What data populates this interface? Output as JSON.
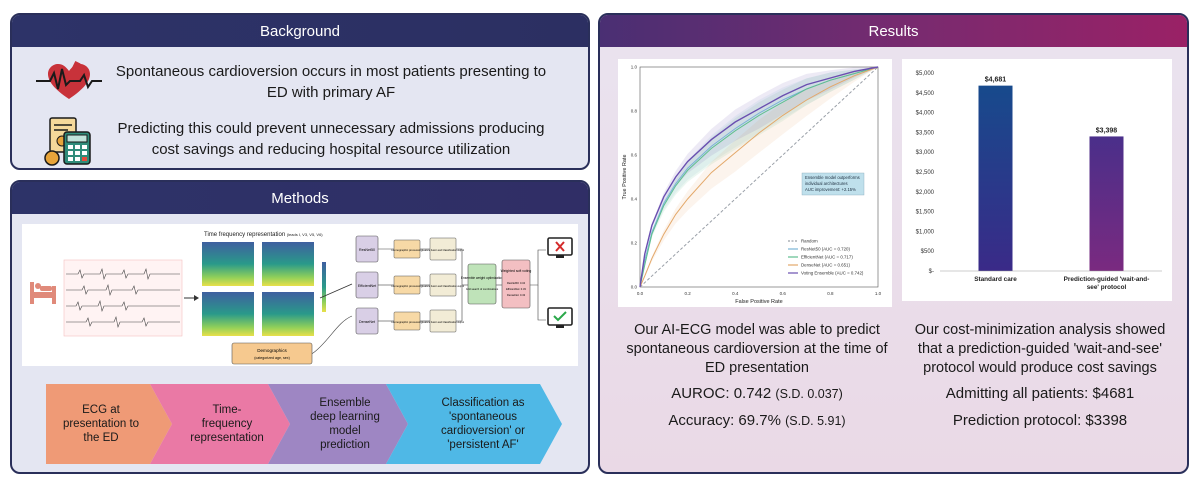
{
  "background": {
    "title": "Background",
    "point1": "Spontaneous cardioversion occurs in most patients presenting to ED with primary AF",
    "point2": "Predicting this could prevent unnecessary admissions producing cost savings and reducing hospital resource utilization"
  },
  "methods": {
    "title": "Methods",
    "figure": {
      "tfr_title": "Time frequency representation",
      "tfr_leads": "(leads I, V3, V5, V6)",
      "models": [
        "ResNet50",
        "EfficientNet",
        "DenseNet"
      ],
      "demo_proc": "Demographic processing",
      "feature_fusion": "Feature fusion and Classification output",
      "ensemble": "Ensemble weight optimization",
      "ensemble_sub": "Grid search of combinations",
      "weighted": "Weighted soft voting",
      "weights": [
        "ResNet50: 0.34",
        "EfficientNet: 0.33",
        "DenseNet: 0.43"
      ],
      "demographics": "Demographics",
      "demographics_sub": "(categorized age, sex)"
    },
    "steps": [
      "ECG at presentation to the ED",
      "Time-frequency representation",
      "Ensemble deep learning model prediction",
      "Classification as 'spontaneous cardioversion' or 'persistent AF'"
    ],
    "colors": [
      "#ef9a76",
      "#ea79a5",
      "#9e86c3",
      "#4fb8e6"
    ]
  },
  "results": {
    "title": "Results",
    "roc_text": "Our AI-ECG model was able to predict spontaneous cardioversion at the time of ED presentation",
    "auroc_label": "AUROC: 0.742",
    "auroc_sd": "(S.D. 0.037)",
    "accuracy_label": "Accuracy: 69.7%",
    "accuracy_sd": "(S.D. 5.91)",
    "cost_text": "Our cost-minimization analysis showed that a prediction-guided 'wait-and-see' protocol would produce cost savings",
    "admit_line": "Admitting all patients: $4681",
    "predict_line": "Prediction protocol: $3398"
  },
  "chart_data": [
    {
      "type": "line",
      "xlabel": "False Positive Rate",
      "ylabel": "True Positive Rate",
      "xlim": [
        0,
        1
      ],
      "ylim": [
        0,
        1
      ],
      "ticks": [
        "0.0",
        "0.2",
        "0.4",
        "0.6",
        "0.8",
        "1.0"
      ],
      "annotation": [
        "Ensemble model outperforms",
        "individual architectures",
        "AUC improvement: +2.15%"
      ],
      "legend_position": "bottom-right",
      "series": [
        {
          "name": "Random",
          "color": "#9aa0a8",
          "dashed": true,
          "x": [
            0,
            1
          ],
          "y": [
            0,
            1
          ]
        },
        {
          "name": "ResNet50 (AUC = 0.720)",
          "color": "#7ab3d6",
          "x": [
            0,
            0.02,
            0.05,
            0.1,
            0.15,
            0.2,
            0.3,
            0.4,
            0.5,
            0.6,
            0.7,
            0.8,
            0.9,
            1.0
          ],
          "y": [
            0,
            0.12,
            0.25,
            0.38,
            0.47,
            0.54,
            0.64,
            0.72,
            0.79,
            0.85,
            0.9,
            0.94,
            0.97,
            1.0
          ]
        },
        {
          "name": "EfficientNet (AUC = 0.717)",
          "color": "#5fbf8f",
          "x": [
            0,
            0.02,
            0.05,
            0.1,
            0.15,
            0.2,
            0.3,
            0.4,
            0.5,
            0.6,
            0.7,
            0.8,
            0.9,
            1.0
          ],
          "y": [
            0,
            0.1,
            0.24,
            0.37,
            0.46,
            0.53,
            0.63,
            0.71,
            0.78,
            0.84,
            0.9,
            0.94,
            0.97,
            1.0
          ]
        },
        {
          "name": "DenseNet (AUC = 0.651)",
          "color": "#e3a86a",
          "x": [
            0,
            0.02,
            0.05,
            0.1,
            0.15,
            0.2,
            0.3,
            0.4,
            0.5,
            0.6,
            0.7,
            0.8,
            0.9,
            1.0
          ],
          "y": [
            0,
            0.05,
            0.13,
            0.24,
            0.33,
            0.4,
            0.52,
            0.61,
            0.7,
            0.78,
            0.85,
            0.91,
            0.96,
            1.0
          ]
        },
        {
          "name": "Voting Ensemble (AUC = 0.742)",
          "color": "#6a4fb0",
          "x": [
            0,
            0.02,
            0.05,
            0.1,
            0.15,
            0.2,
            0.3,
            0.4,
            0.5,
            0.6,
            0.7,
            0.8,
            0.9,
            1.0
          ],
          "y": [
            0,
            0.15,
            0.28,
            0.41,
            0.5,
            0.57,
            0.67,
            0.75,
            0.81,
            0.87,
            0.92,
            0.95,
            0.98,
            1.0
          ]
        }
      ]
    },
    {
      "type": "bar",
      "categories": [
        "Standard care",
        "Prediction-guided 'wait-and-see' protocol"
      ],
      "values": [
        4681,
        3398
      ],
      "data_labels": [
        "$4,681",
        "$3,398"
      ],
      "ylim": [
        0,
        5000
      ],
      "yticks": [
        "$-",
        "$500",
        "$1,000",
        "$1,500",
        "$2,000",
        "$2,500",
        "$3,000",
        "$3,500",
        "$4,000",
        "$4,500",
        "$5,000"
      ],
      "colors": [
        "#1b4a8a",
        "#6a2a86"
      ]
    }
  ]
}
